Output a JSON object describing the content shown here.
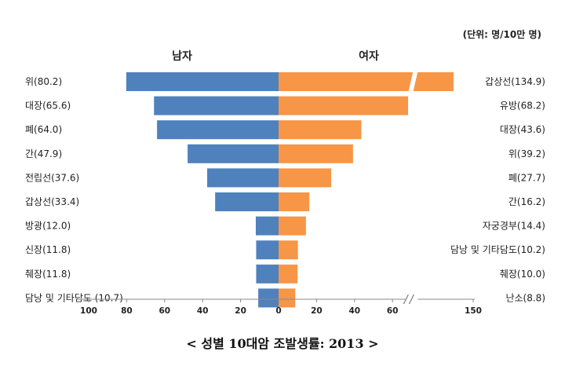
{
  "chart_data": {
    "type": "bar",
    "orientation": "horizontal-butterfly",
    "unit_label": "(단위: 명/10만 명)",
    "caption": "< 성별 10대암 조발생률: 2013 >",
    "colors": {
      "male": "#4f81bd",
      "female": "#f79646"
    },
    "series": [
      {
        "name": "남자",
        "side": "left",
        "labels": [
          "위(80.2)",
          "대장(65.6)",
          "폐(64.0)",
          "간(47.9)",
          "전립선(37.6)",
          "갑상선(33.4)",
          "방광(12.0)",
          "신장(11.8)",
          "췌장(11.8)",
          "담낭 및 기타담도 (10.7)"
        ],
        "values": [
          80.2,
          65.6,
          64.0,
          47.9,
          37.6,
          33.4,
          12.0,
          11.8,
          11.8,
          10.7
        ]
      },
      {
        "name": "여자",
        "side": "right",
        "labels": [
          "갑상선(134.9)",
          "유방(68.2)",
          "대장(43.6)",
          "위(39.2)",
          "폐(27.7)",
          "간(16.2)",
          "자궁경부(14.4)",
          "담낭 및 기타담도(10.2)",
          "췌장(10.0)",
          "난소(8.8)"
        ],
        "values": [
          134.9,
          68.2,
          43.6,
          39.2,
          27.7,
          16.2,
          14.4,
          10.2,
          10.0,
          8.8
        ]
      }
    ],
    "x_axis": {
      "left_ticks": [
        "100",
        "80",
        "60",
        "40",
        "20",
        "0"
      ],
      "right_ticks": [
        "20",
        "40",
        "60",
        "150"
      ],
      "left_range": [
        0,
        100
      ],
      "right_range": [
        0,
        150
      ],
      "axis_break": "between 60 and 150 on the female side"
    }
  }
}
